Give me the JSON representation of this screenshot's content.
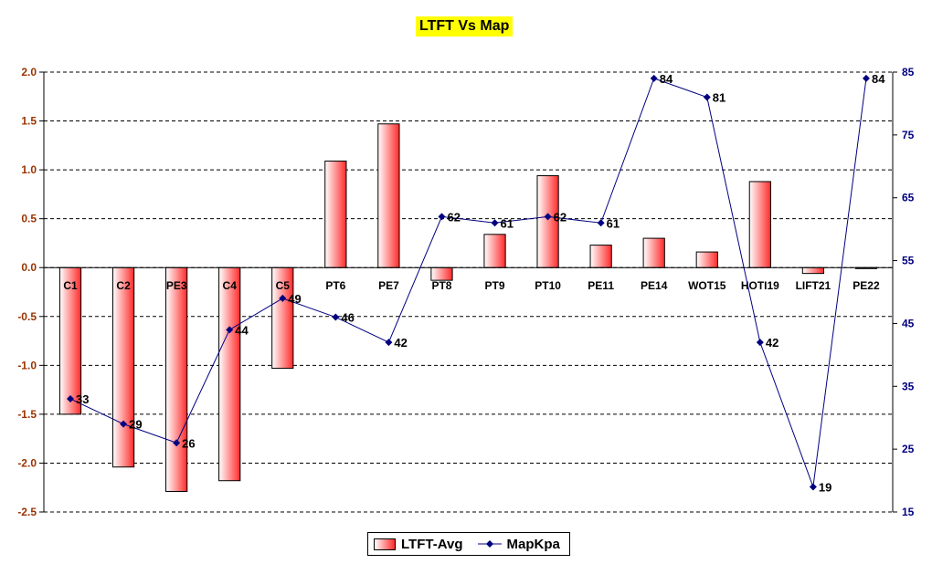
{
  "title": "LTFT Vs Map",
  "legend": {
    "bar_label": "LTFT-Avg",
    "line_label": "MapKpa"
  },
  "colors": {
    "title_bg": "#ffff00",
    "bar_light": "#ffffff",
    "bar_dark": "#ff2a2a",
    "line": "#000080",
    "left_axis_text": "#993300",
    "right_axis_text": "#000080"
  },
  "chart_data": {
    "type": "bar",
    "categories": [
      "C1",
      "C2",
      "PE3",
      "C4",
      "C5",
      "PT6",
      "PE7",
      "PT8",
      "PT9",
      "PT10",
      "PE11",
      "PE14",
      "WOT15",
      "HOTI19",
      "LIFT21",
      "PE22"
    ],
    "series": [
      {
        "name": "LTFT-Avg",
        "type": "bar",
        "axis": "left",
        "values": [
          -1.5,
          -2.04,
          -2.29,
          -2.18,
          -1.03,
          1.09,
          1.47,
          -0.13,
          0.34,
          0.94,
          0.23,
          0.3,
          0.16,
          0.88,
          -0.06,
          -0.01
        ]
      },
      {
        "name": "MapKpa",
        "type": "line",
        "axis": "right",
        "values": [
          33,
          29,
          26,
          44,
          49,
          46,
          42,
          62,
          61,
          62,
          61,
          84,
          81,
          42,
          19,
          84
        ]
      }
    ],
    "left_axis": {
      "ylim": [
        -2.5,
        2.0
      ],
      "ticks": [
        "2.0",
        "1.5",
        "1.0",
        "0.5",
        "0.0",
        "-0.5",
        "-1.0",
        "-1.5",
        "-2.0",
        "-2.5"
      ]
    },
    "right_axis": {
      "ylim": [
        15,
        85
      ],
      "ticks": [
        "85",
        "75",
        "65",
        "55",
        "45",
        "35",
        "25",
        "15"
      ]
    },
    "grid": true,
    "legend_position": "bottom"
  }
}
